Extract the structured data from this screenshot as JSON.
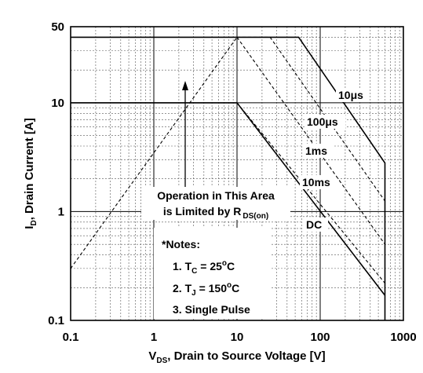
{
  "chart_data": {
    "type": "line",
    "title": "",
    "xscale": "log",
    "yscale": "log",
    "xlim": [
      0.1,
      1000
    ],
    "ylim": [
      0.1,
      50
    ],
    "grid": true,
    "xticks": [
      "0.1",
      "1",
      "10",
      "100",
      "1000"
    ],
    "yticks": [
      "0.1",
      "1",
      "10",
      "50"
    ],
    "xlabel": {
      "prefix": "V",
      "sub": "DS",
      "rest": ", Drain to Source Voltage [V]"
    },
    "ylabel": {
      "prefix": "I",
      "sub": "D",
      "rest": ", Drain Current [A]"
    },
    "series": [
      {
        "name": "10μs",
        "style": "solid",
        "points": [
          [
            0.1,
            40
          ],
          [
            55,
            40
          ],
          [
            600,
            2.8
          ],
          [
            600,
            0.1
          ]
        ]
      },
      {
        "name": "100μs",
        "style": "dashed",
        "points": [
          [
            10,
            40
          ],
          [
            25,
            40
          ],
          [
            600,
            1.25
          ]
        ]
      },
      {
        "name": "1ms",
        "style": "dashed",
        "points": [
          [
            10,
            40
          ],
          [
            600,
            0.5
          ]
        ]
      },
      {
        "name": "10ms",
        "style": "dashed",
        "points": [
          [
            10,
            10
          ],
          [
            600,
            0.22
          ]
        ]
      },
      {
        "name": "DC",
        "style": "solid",
        "points": [
          [
            0.1,
            10
          ],
          [
            10,
            10
          ],
          [
            600,
            0.17
          ]
        ]
      },
      {
        "name": "R_DS(on) limit",
        "style": "dashed",
        "points": [
          [
            0.1,
            0.3
          ],
          [
            10,
            40
          ]
        ]
      }
    ],
    "annotations": {
      "operation_line1": "Operation in This Area",
      "operation_line2": "is Limited by R",
      "operation_sub": "DS(on)",
      "notes_title": "*Notes:",
      "note1": {
        "prefix": "1. T",
        "sub": "C",
        "mid": " = 25",
        "sup": "o",
        "suffix": "C"
      },
      "note2": {
        "prefix": "2. T",
        "sub": "J",
        "mid": " = 150",
        "sup": "o",
        "suffix": "C"
      },
      "note3": "3. Single Pulse",
      "label_10us": "10μs",
      "label_100us": "100μs",
      "label_1ms": "1ms",
      "label_10ms": "10ms",
      "label_dc": "DC"
    }
  }
}
